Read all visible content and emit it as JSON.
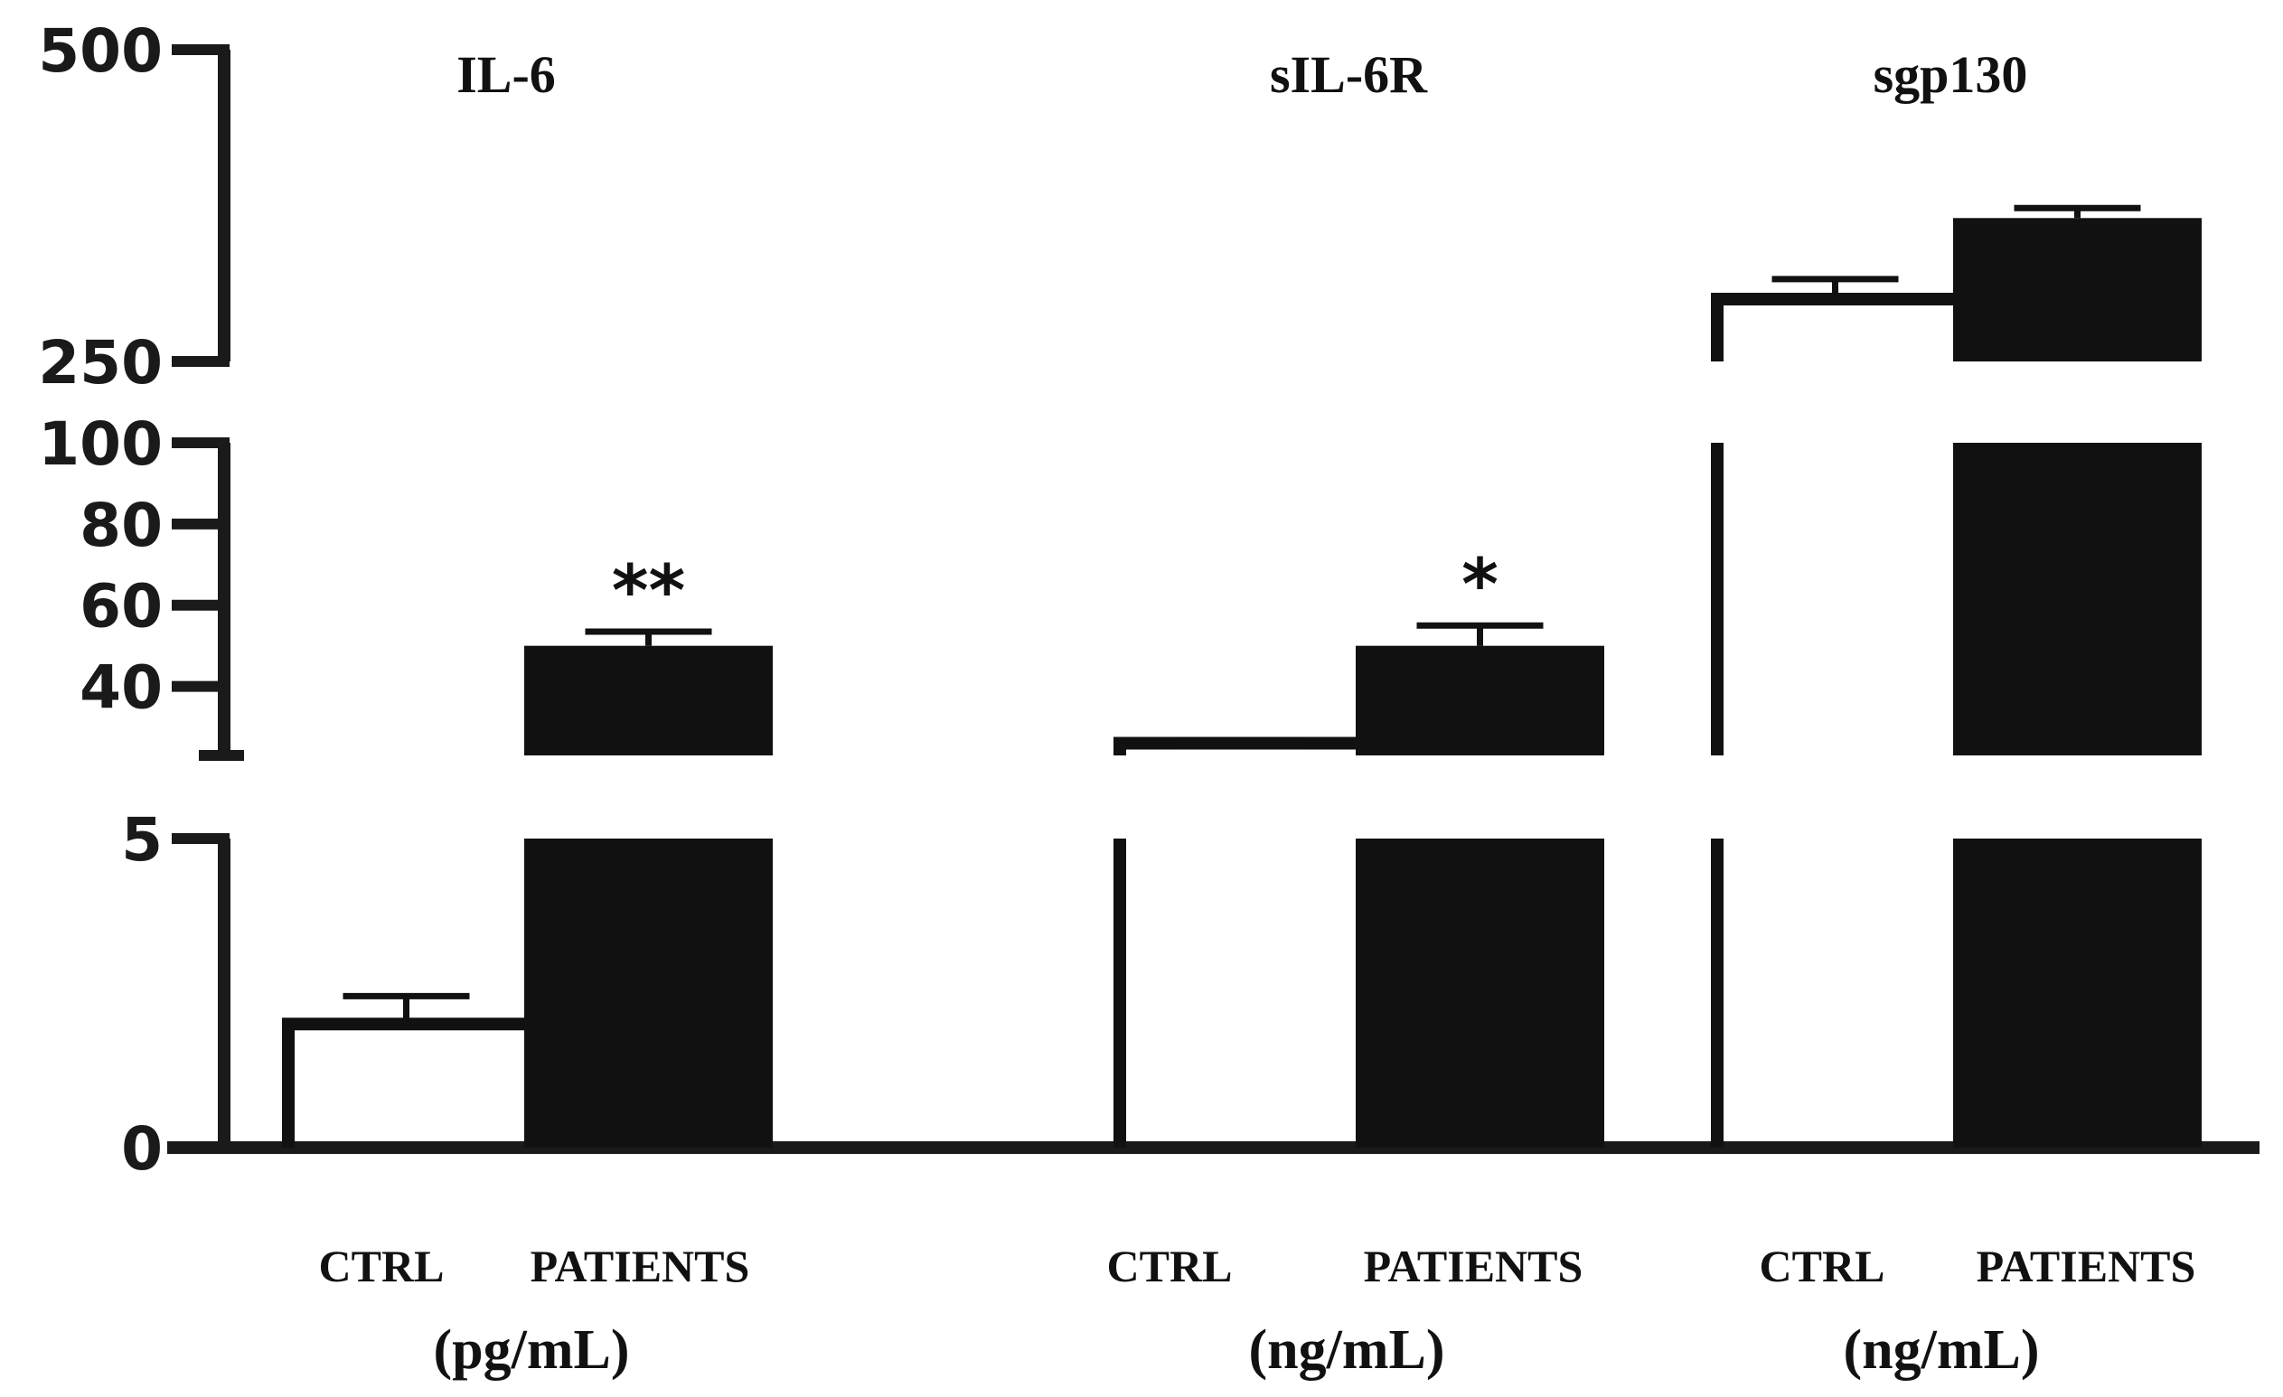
{
  "chart_data": {
    "type": "bar",
    "axis_break": true,
    "y_ticks": [
      "500",
      "250",
      "100",
      "80",
      "60",
      "40",
      "5",
      "0"
    ],
    "colors": {
      "ctrl": "#ffffff",
      "patients": "#111111",
      "axis": "#1a1a1a"
    },
    "panels": [
      {
        "title": "IL-6",
        "unit": "(pg/mL)",
        "categories": [
          "CTRL",
          "PATIENTS"
        ],
        "values": [
          2.0,
          50
        ],
        "errors": [
          0.45,
          3.5
        ],
        "significance": [
          "",
          "**"
        ]
      },
      {
        "title": "sIL-6R",
        "unit": "(ng/mL)",
        "categories": [
          "CTRL",
          "PATIENTS"
        ],
        "values": [
          26,
          50
        ],
        "errors": [
          0.6,
          5
        ],
        "significance": [
          "",
          "*"
        ]
      },
      {
        "title": "sgp130",
        "unit": "(ng/mL)",
        "categories": [
          "CTRL",
          "PATIENTS"
        ],
        "values": [
          300,
          365
        ],
        "errors": [
          16,
          8
        ],
        "significance": [
          "",
          ""
        ]
      }
    ]
  }
}
